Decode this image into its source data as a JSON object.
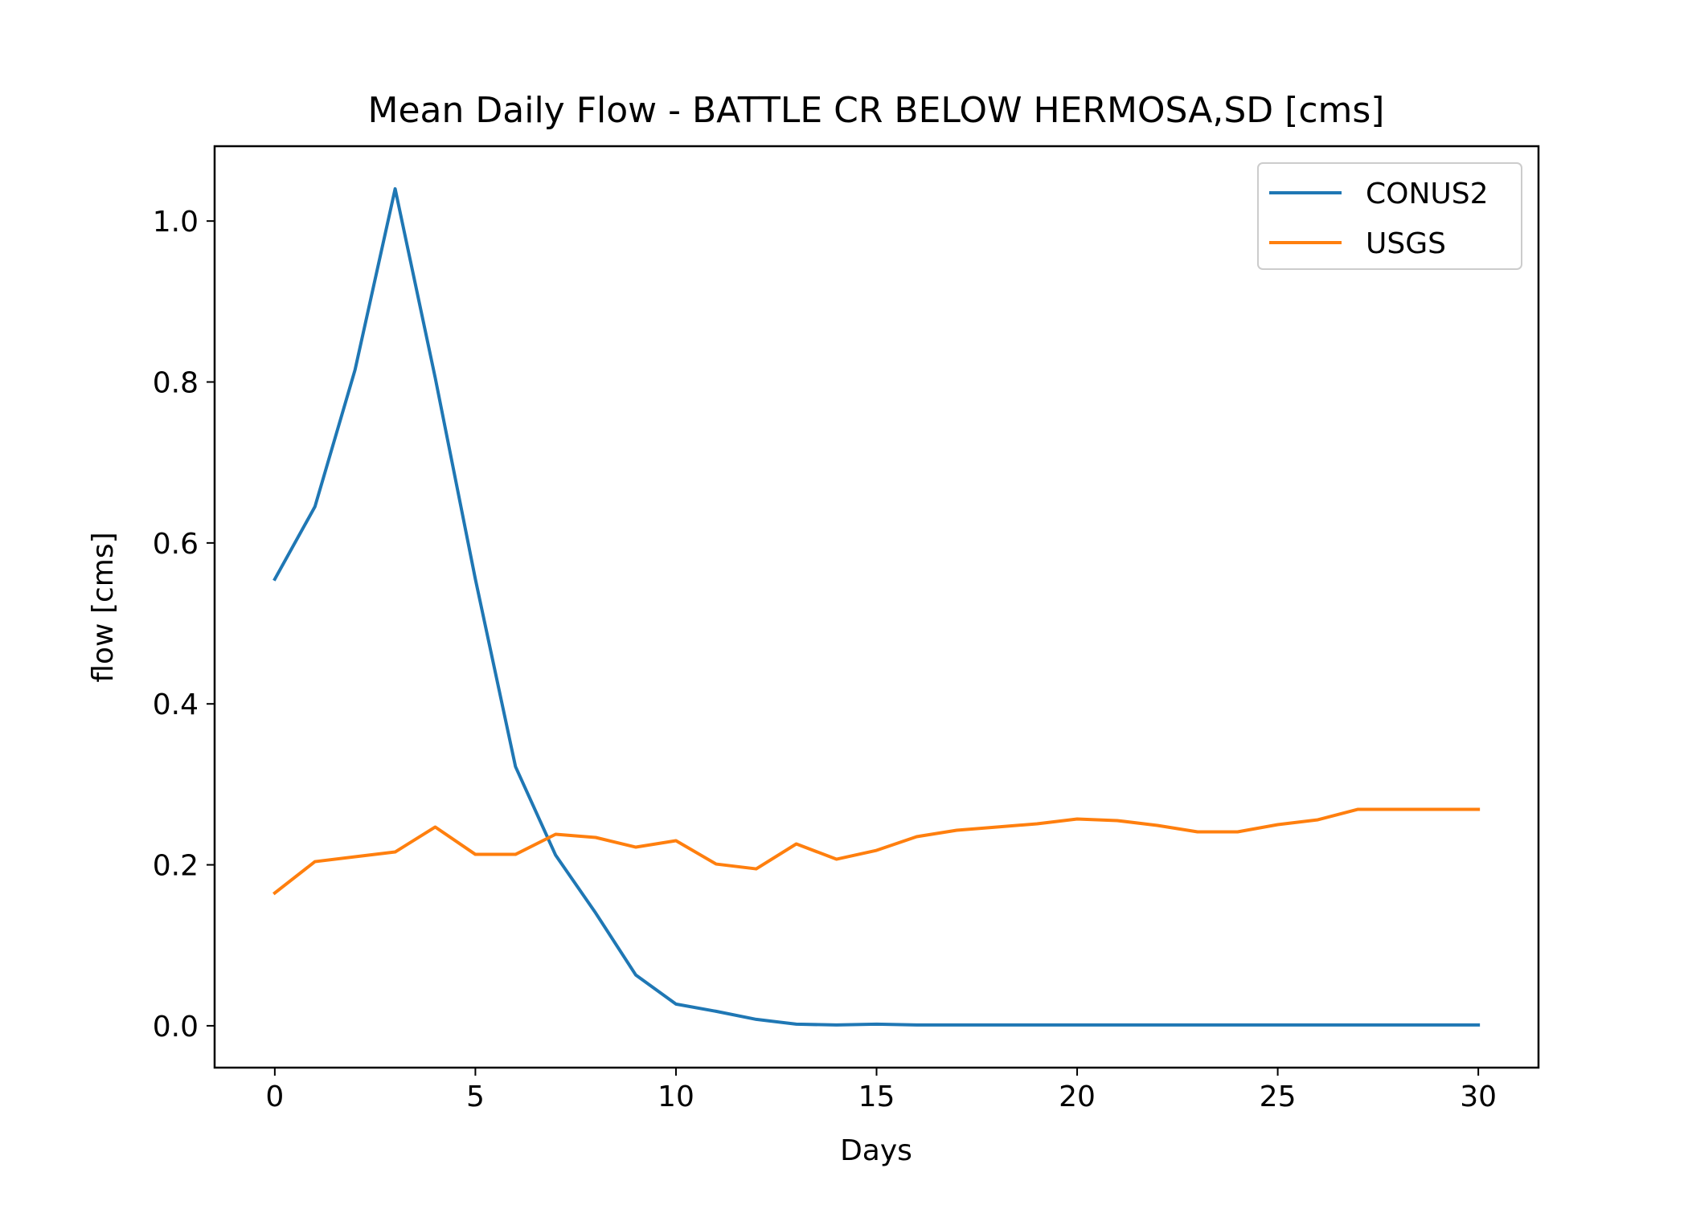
{
  "chart_data": {
    "type": "line",
    "title": "Mean Daily Flow - BATTLE CR BELOW HERMOSA,SD [cms]",
    "xlabel": "Days",
    "ylabel": "flow [cms]",
    "xlim": [
      -1.5,
      31.5
    ],
    "ylim": [
      -0.052,
      1.093
    ],
    "xticks": [
      0,
      5,
      10,
      15,
      20,
      25,
      30
    ],
    "xtick_labels": [
      "0",
      "5",
      "10",
      "15",
      "20",
      "25",
      "30"
    ],
    "yticks": [
      0.0,
      0.2,
      0.4,
      0.6,
      0.8,
      1.0
    ],
    "ytick_labels": [
      "0.0",
      "0.2",
      "0.4",
      "0.6",
      "0.8",
      "1.0"
    ],
    "grid": false,
    "legend_position": "upper right",
    "x": [
      0,
      1,
      2,
      3,
      4,
      5,
      6,
      7,
      8,
      9,
      10,
      11,
      12,
      13,
      14,
      15,
      16,
      17,
      18,
      19,
      20,
      21,
      22,
      23,
      24,
      25,
      26,
      27,
      28,
      29,
      30
    ],
    "series": [
      {
        "name": "CONUS2",
        "color": "#1f77b4",
        "values": [
          0.555,
          0.645,
          0.815,
          1.04,
          0.805,
          0.555,
          0.322,
          0.212,
          0.14,
          0.063,
          0.027,
          0.018,
          0.008,
          0.002,
          0.001,
          0.002,
          0.001,
          0.001,
          0.001,
          0.001,
          0.001,
          0.001,
          0.001,
          0.001,
          0.001,
          0.001,
          0.001,
          0.001,
          0.001,
          0.001,
          0.001
        ]
      },
      {
        "name": "USGS",
        "color": "#ff7f0e",
        "values": [
          0.165,
          0.204,
          0.21,
          0.216,
          0.247,
          0.213,
          0.213,
          0.238,
          0.234,
          0.222,
          0.23,
          0.201,
          0.195,
          0.226,
          0.207,
          0.218,
          0.235,
          0.243,
          0.247,
          0.251,
          0.257,
          0.255,
          0.249,
          0.241,
          0.241,
          0.25,
          0.256,
          0.269,
          0.269,
          0.269,
          0.269
        ]
      }
    ]
  }
}
